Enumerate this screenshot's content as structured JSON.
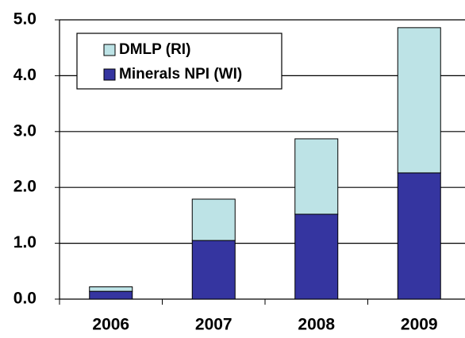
{
  "chart_data": {
    "type": "stacked_bar",
    "categories": [
      "2006",
      "2007",
      "2008",
      "2009"
    ],
    "series": [
      {
        "name": "Minerals NPI (WI)",
        "color": "#3535a0",
        "values": [
          0.14,
          1.05,
          1.52,
          2.26
        ]
      },
      {
        "name": "DMLP (RI)",
        "color": "#bde3e6",
        "values": [
          0.08,
          0.74,
          1.35,
          2.6
        ]
      }
    ],
    "ylim": [
      0,
      5
    ],
    "yticks": [
      {
        "value": 0,
        "label": "0.0"
      },
      {
        "value": 1,
        "label": "1.0"
      },
      {
        "value": 2,
        "label": "2.0"
      },
      {
        "value": 3,
        "label": "3.0"
      },
      {
        "value": 4,
        "label": "4.0"
      },
      {
        "value": 5,
        "label": "5.0"
      }
    ],
    "grid": true,
    "legend": "upper left"
  }
}
